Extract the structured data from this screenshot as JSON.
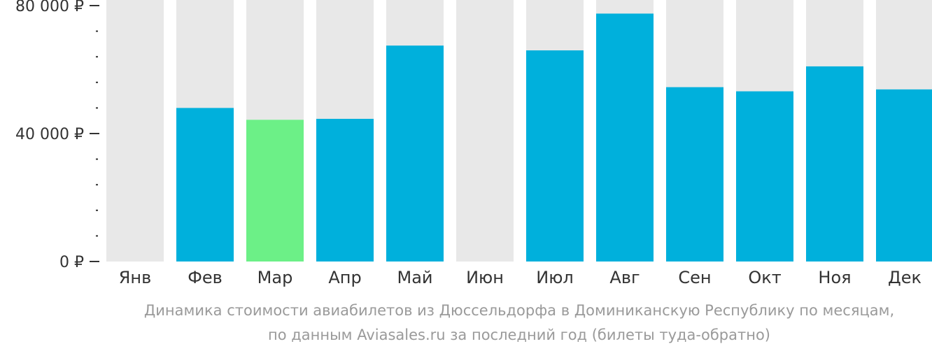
{
  "chart_data": {
    "type": "bar",
    "categories": [
      "Янв",
      "Фев",
      "Мар",
      "Апр",
      "Май",
      "Июн",
      "Июл",
      "Авг",
      "Сен",
      "Окт",
      "Ноя",
      "Дек"
    ],
    "values": [
      null,
      48000,
      44300,
      44600,
      67500,
      null,
      66000,
      77500,
      54500,
      53200,
      61000,
      53800
    ],
    "highlight_category": "Мар",
    "ylim": [
      0,
      80000
    ],
    "y_ticks": [
      {
        "value": 0,
        "label": "0 ₽"
      },
      {
        "value": 40000,
        "label": "40 000 ₽"
      },
      {
        "value": 80000,
        "label": "80 000 ₽"
      }
    ],
    "y_minor_tick_step": 8000,
    "grid": false,
    "colors": {
      "bar": "#00b0dc",
      "highlight_bar": "#6cf087",
      "background_bar": "#e8e8e8",
      "axis": "#333333"
    }
  },
  "caption": {
    "line1": "Динамика стоимости авиабилетов из Дюссельдорфа в Доминиканскую Республику по месяцам,",
    "line2": "по данным Aviasales.ru за последний год (билеты туда-обратно)"
  }
}
